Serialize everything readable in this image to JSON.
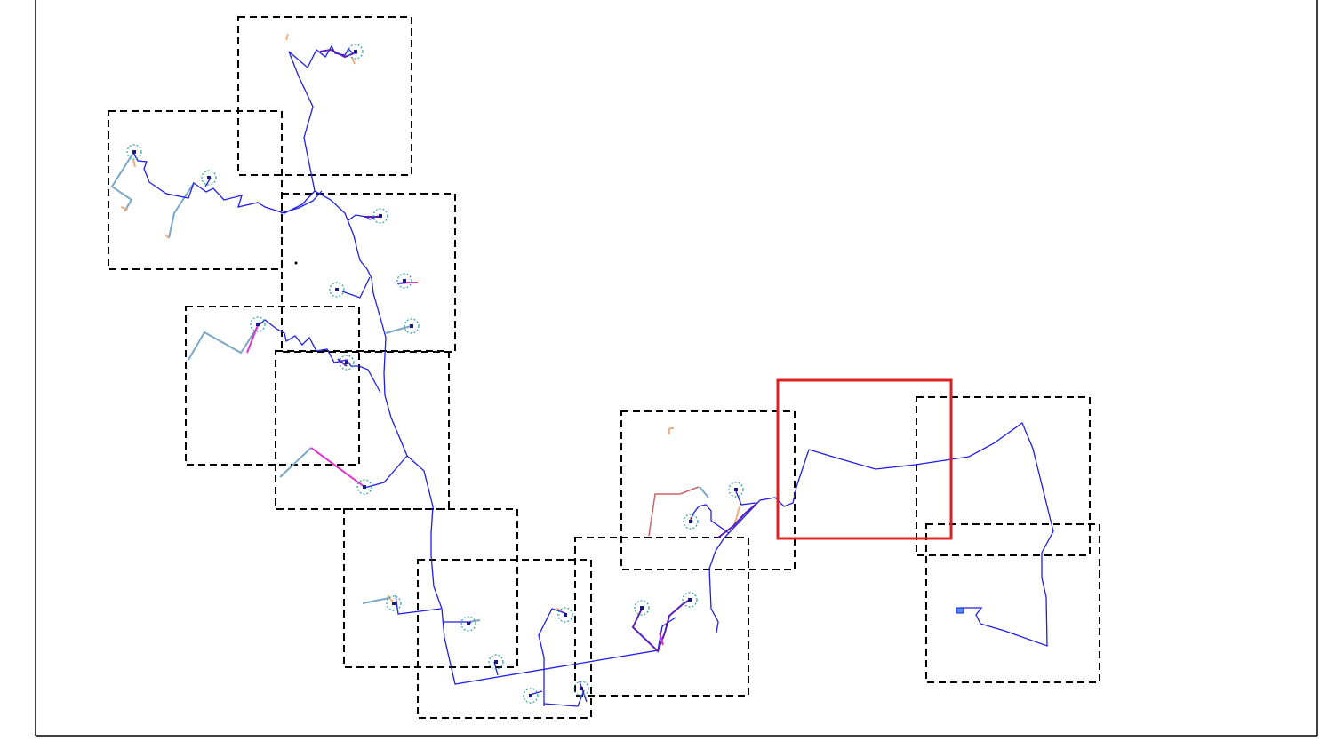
{
  "map": {
    "frame_color": "#000000",
    "route_color": "#1f1fe6",
    "branch_color_purple": "#5a1fb8",
    "branch_color_magenta": "#e032d0",
    "branch_color_lightblue": "#7aa7c8",
    "branch_color_orange": "#f0b080",
    "branch_color_red": "#c86464",
    "marker_ring_color": "#2aa198",
    "marker_dot_color": "#1a1a80",
    "dashed_frame_color": "#000000",
    "highlight_frame_color": "#e02020",
    "tiles": [
      {
        "id": 1,
        "selected": false
      },
      {
        "id": 2,
        "selected": false
      },
      {
        "id": 3,
        "selected": false
      },
      {
        "id": 4,
        "selected": false
      },
      {
        "id": 5,
        "selected": false
      },
      {
        "id": 6,
        "selected": false
      },
      {
        "id": 7,
        "selected": false
      },
      {
        "id": 8,
        "selected": false
      },
      {
        "id": 9,
        "selected": false
      },
      {
        "id": 10,
        "selected": true
      },
      {
        "id": 11,
        "selected": false
      },
      {
        "id": 12,
        "selected": false
      },
      {
        "id": 13,
        "selected": false
      }
    ],
    "markers_count": 18
  }
}
